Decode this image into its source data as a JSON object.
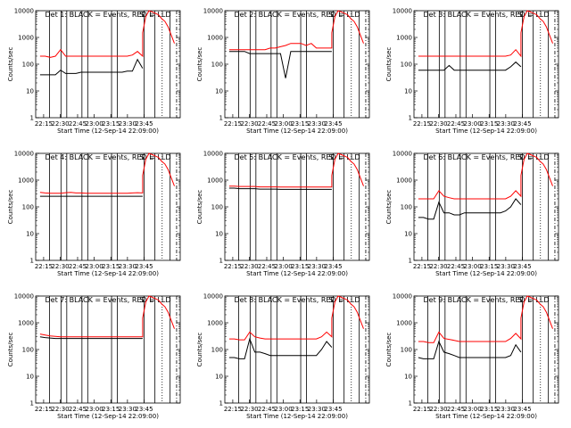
{
  "figure": {
    "xlabel": "Start Time (12-Sep-14 22:09:00)",
    "ylabel": "Counts/sec",
    "x_tick_labels": [
      "22:15",
      "22:30",
      "22:45",
      "23:00",
      "23:15",
      "23:30",
      "23:45"
    ],
    "y_tick_labels": [
      "1",
      "10",
      "100",
      "1000",
      "10000"
    ],
    "line_colors": {
      "events": "#000000",
      "lld": "#ff0000"
    },
    "marker_labels": [
      "S",
      "L"
    ]
  },
  "chart_data": [
    {
      "type": "line",
      "title": "Det 1: BLACK = Events, RED = LLD",
      "yscale": "log",
      "ylim": [
        1,
        10000
      ],
      "series": [
        {
          "name": "Events",
          "values": [
            40,
            40,
            40,
            40,
            60,
            45,
            45,
            45,
            50,
            50,
            50,
            50,
            50,
            50,
            50,
            50,
            50,
            55,
            55,
            150,
            70
          ]
        },
        {
          "name": "LLD",
          "values": [
            200,
            200,
            180,
            200,
            350,
            200,
            200,
            200,
            200,
            200,
            200,
            200,
            200,
            200,
            200,
            200,
            200,
            200,
            220,
            300,
            200
          ]
        }
      ]
    },
    {
      "type": "line",
      "title": "Det 2: BLACK = Events, RED = LLD",
      "yscale": "log",
      "ylim": [
        1,
        10000
      ],
      "series": [
        {
          "name": "Events",
          "values": [
            300,
            300,
            300,
            300,
            250,
            250,
            250,
            250,
            250,
            250,
            250,
            30,
            300,
            300,
            300,
            300,
            300,
            300,
            300,
            300,
            300
          ]
        },
        {
          "name": "LLD",
          "values": [
            350,
            350,
            350,
            350,
            350,
            350,
            350,
            350,
            400,
            400,
            450,
            500,
            600,
            600,
            600,
            500,
            600,
            400,
            400,
            400,
            400
          ]
        }
      ]
    },
    {
      "type": "line",
      "title": "Det 3: BLACK = Events, RED = LLD",
      "yscale": "log",
      "ylim": [
        1,
        10000
      ],
      "series": [
        {
          "name": "Events",
          "values": [
            60,
            60,
            60,
            60,
            60,
            60,
            90,
            60,
            60,
            60,
            60,
            60,
            60,
            60,
            60,
            60,
            60,
            60,
            80,
            120,
            80
          ]
        },
        {
          "name": "LLD",
          "values": [
            200,
            200,
            200,
            200,
            200,
            200,
            200,
            200,
            200,
            200,
            200,
            200,
            200,
            200,
            200,
            200,
            200,
            200,
            220,
            350,
            200
          ]
        }
      ]
    },
    {
      "type": "line",
      "title": "Det 4: BLACK = Events, RED = LLD",
      "yscale": "log",
      "ylim": [
        1,
        10000
      ],
      "series": [
        {
          "name": "Events",
          "values": [
            250,
            250,
            250,
            250,
            250,
            250,
            250,
            250,
            250,
            250,
            250,
            250,
            250,
            250,
            250,
            250,
            250,
            250,
            250,
            250,
            250
          ]
        },
        {
          "name": "LLD",
          "values": [
            350,
            330,
            320,
            320,
            320,
            340,
            350,
            330,
            330,
            320,
            320,
            320,
            320,
            320,
            320,
            320,
            320,
            320,
            330,
            340,
            330
          ]
        }
      ]
    },
    {
      "type": "line",
      "title": "Det 5: BLACK = Events, RED = LLD",
      "yscale": "log",
      "ylim": [
        1,
        10000
      ],
      "series": [
        {
          "name": "Events",
          "values": [
            500,
            500,
            480,
            480,
            480,
            480,
            460,
            460,
            460,
            460,
            450,
            450,
            450,
            450,
            450,
            450,
            450,
            450,
            450,
            450,
            450
          ]
        },
        {
          "name": "LLD",
          "values": [
            600,
            600,
            580,
            580,
            580,
            580,
            560,
            560,
            560,
            560,
            550,
            550,
            550,
            550,
            550,
            550,
            550,
            550,
            550,
            550,
            550
          ]
        }
      ]
    },
    {
      "type": "line",
      "title": "Det 6: BLACK = Events, RED = LLD",
      "yscale": "log",
      "ylim": [
        1,
        10000
      ],
      "series": [
        {
          "name": "Events",
          "values": [
            40,
            40,
            35,
            35,
            150,
            60,
            60,
            50,
            50,
            60,
            60,
            60,
            60,
            60,
            60,
            60,
            60,
            70,
            100,
            200,
            120
          ]
        },
        {
          "name": "LLD",
          "values": [
            200,
            200,
            200,
            200,
            400,
            250,
            220,
            200,
            200,
            200,
            200,
            200,
            200,
            200,
            200,
            200,
            200,
            200,
            250,
            400,
            250
          ]
        }
      ]
    },
    {
      "type": "line",
      "title": "Det 7: BLACK = Events, RED = LLD",
      "yscale": "log",
      "ylim": [
        1,
        10000
      ],
      "series": [
        {
          "name": "Events",
          "values": [
            300,
            280,
            270,
            260,
            260,
            260,
            260,
            260,
            260,
            260,
            260,
            260,
            260,
            260,
            260,
            260,
            260,
            260,
            260,
            260,
            260
          ]
        },
        {
          "name": "LLD",
          "values": [
            380,
            350,
            320,
            310,
            300,
            300,
            300,
            300,
            300,
            300,
            300,
            300,
            300,
            300,
            300,
            300,
            300,
            300,
            300,
            300,
            300
          ]
        }
      ]
    },
    {
      "type": "line",
      "title": "Det 8: BLACK = Events, RED = LLD",
      "yscale": "log",
      "ylim": [
        1,
        10000
      ],
      "series": [
        {
          "name": "Events",
          "values": [
            50,
            50,
            45,
            45,
            250,
            80,
            80,
            70,
            60,
            60,
            60,
            60,
            60,
            60,
            60,
            60,
            60,
            60,
            100,
            200,
            120
          ]
        },
        {
          "name": "LLD",
          "values": [
            250,
            250,
            230,
            230,
            450,
            300,
            270,
            250,
            250,
            250,
            250,
            250,
            250,
            250,
            250,
            250,
            250,
            250,
            300,
            450,
            300
          ]
        }
      ]
    },
    {
      "type": "line",
      "title": "Det 9: BLACK = Events, RED = LLD",
      "yscale": "log",
      "ylim": [
        1,
        10000
      ],
      "series": [
        {
          "name": "Events",
          "values": [
            50,
            45,
            45,
            45,
            200,
            80,
            70,
            60,
            50,
            50,
            50,
            50,
            50,
            50,
            50,
            50,
            50,
            50,
            60,
            150,
            80
          ]
        },
        {
          "name": "LLD",
          "values": [
            200,
            200,
            180,
            180,
            450,
            260,
            240,
            220,
            200,
            200,
            200,
            200,
            200,
            200,
            200,
            200,
            200,
            200,
            260,
            400,
            250
          ]
        }
      ]
    }
  ]
}
